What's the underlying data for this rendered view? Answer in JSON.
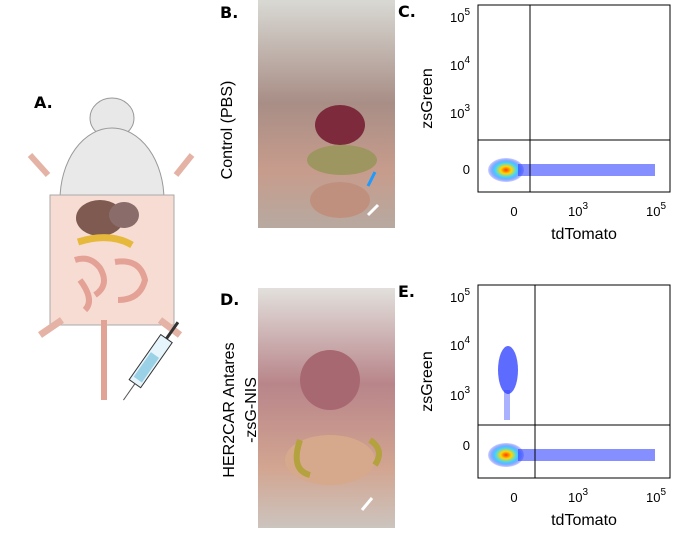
{
  "panels": {
    "a": {
      "label": "A."
    },
    "b": {
      "label": "B.",
      "side_label": "Control (PBS)"
    },
    "c": {
      "label": "C.",
      "x_label": "tdTomato",
      "y_label": "zsGreen",
      "y_ticks": [
        {
          "base": "10",
          "exp": "5"
        },
        {
          "base": "10",
          "exp": "4"
        },
        {
          "base": "10",
          "exp": "3"
        },
        {
          "base": "0"
        }
      ],
      "x_ticks": [
        {
          "base": "0"
        },
        {
          "base": "10",
          "exp": "3"
        },
        {
          "base": "10",
          "exp": "5"
        }
      ]
    },
    "d": {
      "label": "D.",
      "side_label_lines": [
        "HER2CAR Antares",
        "-zsG-NIS"
      ]
    },
    "e": {
      "label": "E.",
      "x_label": "tdTomato",
      "y_label": "zsGreen",
      "y_ticks": [
        {
          "base": "10",
          "exp": "5"
        },
        {
          "base": "10",
          "exp": "4"
        },
        {
          "base": "10",
          "exp": "3"
        },
        {
          "base": "0"
        }
      ],
      "x_ticks": [
        {
          "base": "0"
        },
        {
          "base": "10",
          "exp": "3"
        },
        {
          "base": "10",
          "exp": "5"
        }
      ]
    }
  }
}
